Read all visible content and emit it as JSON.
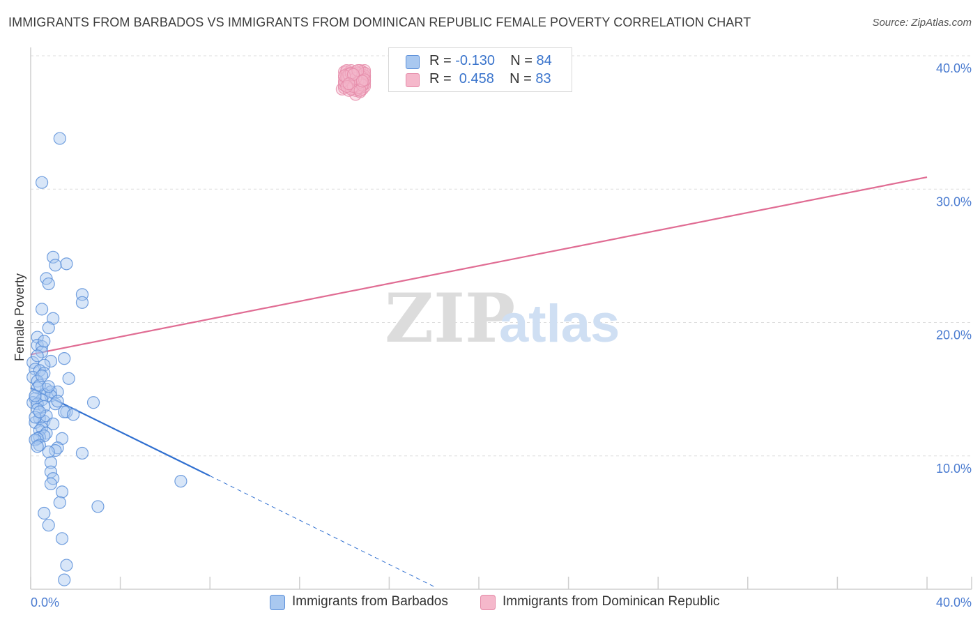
{
  "title": "IMMIGRANTS FROM BARBADOS VS IMMIGRANTS FROM DOMINICAN REPUBLIC FEMALE POVERTY CORRELATION CHART",
  "source": "Source: ZipAtlas.com",
  "watermark": {
    "zip": "ZIP",
    "atlas": "atlas"
  },
  "colors": {
    "series1_fill": "#a9c8f0",
    "series1_stroke": "#5b8fd9",
    "series1_line": "#2f6fd0",
    "series2_fill": "#f5b8cb",
    "series2_stroke": "#e58aa8",
    "series2_line": "#e06c93",
    "grid": "#dedede",
    "axis_text": "#4a7bd0"
  },
  "stats": [
    {
      "r_label": "R = ",
      "r_value": "-0.130",
      "n_label": "N = ",
      "n_value": "84"
    },
    {
      "r_label": "R = ",
      "r_value": " 0.458",
      "n_label": "N = ",
      "n_value": "83"
    }
  ],
  "legend": [
    "Immigrants from Barbados",
    "Immigrants from Dominican Republic"
  ],
  "chart_data": {
    "type": "scatter",
    "title": "IMMIGRANTS FROM BARBADOS VS IMMIGRANTS FROM DOMINICAN REPUBLIC FEMALE POVERTY CORRELATION CHART",
    "xlabel": "",
    "ylabel": "Female Poverty",
    "xlim": [
      0,
      40
    ],
    "ylim": [
      0,
      40
    ],
    "x_tick_labels": [
      "0.0%",
      "40.0%"
    ],
    "y_ticks": [
      10,
      20,
      30,
      40
    ],
    "y_tick_labels": [
      "10.0%",
      "20.0%",
      "30.0%",
      "40.0%"
    ],
    "grid": true,
    "legend_position": "bottom",
    "series": [
      {
        "name": "Immigrants from Barbados",
        "r": -0.13,
        "n": 84,
        "trend_solid": [
          [
            0,
            15.1
          ],
          [
            8,
            8.5
          ]
        ],
        "trend_dashed": [
          [
            8,
            8.5
          ],
          [
            18,
            0.2
          ]
        ],
        "points": [
          [
            1.3,
            33.8
          ],
          [
            0.5,
            30.5
          ],
          [
            1.0,
            24.9
          ],
          [
            1.6,
            24.4
          ],
          [
            1.1,
            24.3
          ],
          [
            0.7,
            23.3
          ],
          [
            0.8,
            22.9
          ],
          [
            2.3,
            22.1
          ],
          [
            2.3,
            21.5
          ],
          [
            0.5,
            21.0
          ],
          [
            1.0,
            20.3
          ],
          [
            0.8,
            19.6
          ],
          [
            0.3,
            18.9
          ],
          [
            0.3,
            18.3
          ],
          [
            0.5,
            18.2
          ],
          [
            0.5,
            17.8
          ],
          [
            1.5,
            17.3
          ],
          [
            0.9,
            17.1
          ],
          [
            0.1,
            17.0
          ],
          [
            0.6,
            16.8
          ],
          [
            0.2,
            16.5
          ],
          [
            0.4,
            16.4
          ],
          [
            0.6,
            16.2
          ],
          [
            0.1,
            15.9
          ],
          [
            0.3,
            15.6
          ],
          [
            1.7,
            15.8
          ],
          [
            0.7,
            15.0
          ],
          [
            0.3,
            15.1
          ],
          [
            0.9,
            14.8
          ],
          [
            1.2,
            14.8
          ],
          [
            0.6,
            14.6
          ],
          [
            0.9,
            14.5
          ],
          [
            0.2,
            14.3
          ],
          [
            0.5,
            14.2
          ],
          [
            0.1,
            14.0
          ],
          [
            0.3,
            13.9
          ],
          [
            1.1,
            13.9
          ],
          [
            2.8,
            14.0
          ],
          [
            0.6,
            13.7
          ],
          [
            0.3,
            13.5
          ],
          [
            1.6,
            13.3
          ],
          [
            1.5,
            13.3
          ],
          [
            1.9,
            13.1
          ],
          [
            0.4,
            12.8
          ],
          [
            0.6,
            12.6
          ],
          [
            0.2,
            12.5
          ],
          [
            0.5,
            12.1
          ],
          [
            0.4,
            11.9
          ],
          [
            0.7,
            11.7
          ],
          [
            0.4,
            11.4
          ],
          [
            0.6,
            11.5
          ],
          [
            0.3,
            11.3
          ],
          [
            1.4,
            11.3
          ],
          [
            0.2,
            11.2
          ],
          [
            0.4,
            10.8
          ],
          [
            0.3,
            10.7
          ],
          [
            1.2,
            10.6
          ],
          [
            1.1,
            10.4
          ],
          [
            0.8,
            10.3
          ],
          [
            2.3,
            10.2
          ],
          [
            0.9,
            9.5
          ],
          [
            0.9,
            8.8
          ],
          [
            1.0,
            8.3
          ],
          [
            0.9,
            7.9
          ],
          [
            6.7,
            8.1
          ],
          [
            1.4,
            7.3
          ],
          [
            1.3,
            6.5
          ],
          [
            3.0,
            6.2
          ],
          [
            0.6,
            5.7
          ],
          [
            0.8,
            4.8
          ],
          [
            1.4,
            3.8
          ],
          [
            1.6,
            1.8
          ],
          [
            1.5,
            0.7
          ],
          [
            0.2,
            14.5
          ],
          [
            0.4,
            15.3
          ],
          [
            0.7,
            13.0
          ],
          [
            0.2,
            12.9
          ],
          [
            1.0,
            12.4
          ],
          [
            0.5,
            16.0
          ],
          [
            0.8,
            15.2
          ],
          [
            0.3,
            17.5
          ],
          [
            0.6,
            18.6
          ],
          [
            1.2,
            14.1
          ],
          [
            0.4,
            13.3
          ]
        ]
      },
      {
        "name": "Immigrants from Dominican Republic",
        "r": 0.458,
        "n": 83,
        "trend": [
          [
            0,
            17.6
          ],
          [
            40,
            30.9
          ]
        ],
        "points": [
          [
            17.0,
            39.5
          ],
          [
            14.0,
            38.8
          ],
          [
            14.3,
            38.3
          ],
          [
            14.7,
            38.1
          ],
          [
            14.1,
            38.3
          ],
          [
            14.4,
            38.7
          ],
          [
            14.8,
            38.0
          ],
          [
            13.9,
            37.5
          ],
          [
            14.5,
            37.1
          ],
          [
            14.9,
            38.9
          ],
          [
            14.0,
            38.0
          ],
          [
            14.6,
            37.8
          ],
          [
            14.2,
            38.5
          ],
          [
            14.8,
            38.6
          ],
          [
            14.3,
            37.7
          ],
          [
            14.7,
            37.3
          ],
          [
            14.5,
            38.2
          ],
          [
            14.1,
            38.8
          ],
          [
            14.9,
            38.4
          ],
          [
            14.4,
            37.9
          ],
          [
            14.6,
            38.6
          ],
          [
            14.0,
            37.6
          ],
          [
            14.8,
            37.5
          ],
          [
            14.2,
            38.1
          ],
          [
            14.5,
            38.5
          ],
          [
            14.7,
            38.9
          ],
          [
            14.3,
            37.6
          ],
          [
            14.6,
            38.3
          ],
          [
            14.1,
            37.9
          ],
          [
            14.9,
            37.7
          ],
          [
            14.4,
            38.0
          ],
          [
            14.8,
            38.2
          ],
          [
            14.2,
            38.7
          ],
          [
            14.5,
            37.4
          ],
          [
            14.7,
            38.4
          ],
          [
            14.3,
            38.9
          ],
          [
            14.6,
            37.5
          ],
          [
            14.0,
            38.4
          ],
          [
            14.9,
            38.1
          ],
          [
            14.1,
            38.6
          ],
          [
            14.4,
            37.8
          ],
          [
            14.8,
            38.8
          ],
          [
            14.2,
            37.4
          ],
          [
            14.6,
            38.0
          ],
          [
            14.5,
            38.6
          ],
          [
            14.3,
            38.2
          ],
          [
            14.7,
            37.6
          ],
          [
            14.1,
            38.1
          ],
          [
            14.9,
            38.5
          ],
          [
            14.4,
            38.3
          ],
          [
            14.0,
            37.8
          ],
          [
            14.6,
            38.7
          ],
          [
            14.8,
            37.9
          ],
          [
            14.2,
            38.4
          ],
          [
            14.5,
            37.7
          ],
          [
            14.3,
            38.0
          ],
          [
            14.7,
            38.5
          ],
          [
            14.1,
            38.9
          ],
          [
            14.9,
            37.9
          ],
          [
            14.4,
            38.5
          ],
          [
            14.6,
            37.6
          ],
          [
            14.2,
            38.2
          ],
          [
            14.8,
            38.4
          ],
          [
            14.0,
            38.1
          ],
          [
            14.5,
            38.8
          ],
          [
            14.3,
            37.5
          ],
          [
            14.7,
            38.0
          ],
          [
            14.1,
            38.4
          ],
          [
            14.9,
            38.7
          ],
          [
            14.4,
            37.7
          ],
          [
            14.6,
            38.1
          ],
          [
            14.2,
            38.6
          ],
          [
            14.8,
            37.8
          ],
          [
            14.5,
            38.3
          ],
          [
            14.3,
            38.7
          ],
          [
            14.7,
            37.4
          ],
          [
            14.0,
            38.5
          ],
          [
            14.6,
            38.9
          ],
          [
            14.9,
            38.2
          ],
          [
            14.1,
            37.7
          ],
          [
            14.4,
            38.6
          ],
          [
            14.8,
            38.1
          ],
          [
            14.2,
            37.9
          ]
        ]
      }
    ]
  }
}
